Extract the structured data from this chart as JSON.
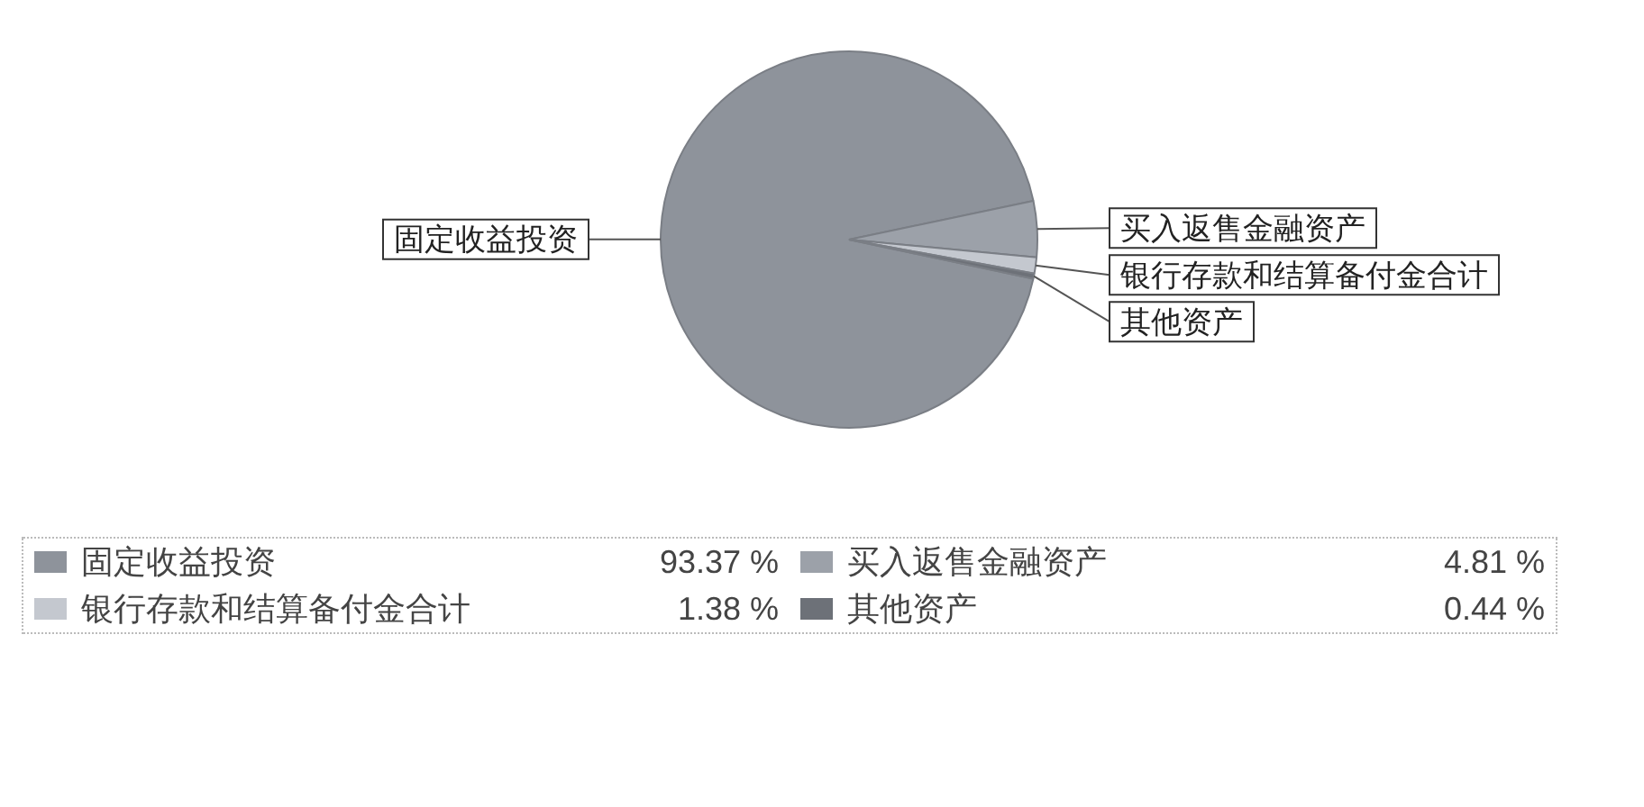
{
  "chart_data": {
    "type": "pie",
    "categories": [
      "固定收益投资",
      "买入返售金融资产",
      "银行存款和结算备付金合计",
      "其他资产"
    ],
    "values": [
      93.37,
      4.81,
      1.38,
      0.44
    ],
    "colors": [
      "#8e939b",
      "#9ca1a9",
      "#c4c8cf",
      "#6d7178"
    ],
    "value_labels": [
      "93.37 %",
      "4.81 %",
      "1.38 %",
      "0.44 %"
    ],
    "legend": "bottom"
  }
}
